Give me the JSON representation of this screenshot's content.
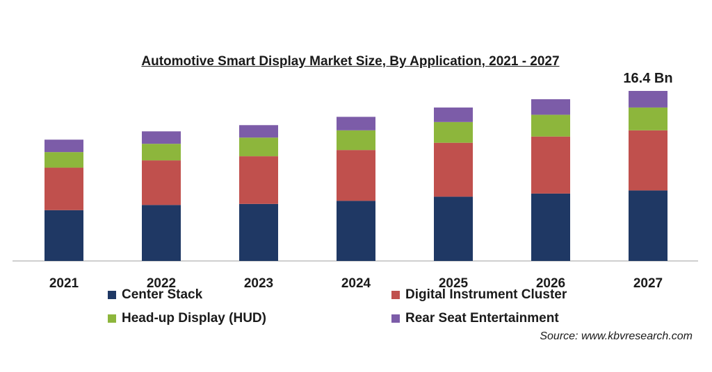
{
  "chart_data": {
    "type": "bar",
    "stacked": true,
    "title": "Automotive Smart Display Market Size, By Application, 2021 - 2027",
    "categories": [
      "2021",
      "2022",
      "2023",
      "2024",
      "2025",
      "2026",
      "2027"
    ],
    "series": [
      {
        "name": "Center Stack",
        "color": "#1f3864",
        "values": [
          4.9,
          5.4,
          5.5,
          5.8,
          6.2,
          6.5,
          6.8
        ]
      },
      {
        "name": "Digital Instrument Cluster",
        "color": "#c0504d",
        "values": [
          4.1,
          4.3,
          4.6,
          4.9,
          5.2,
          5.5,
          5.8
        ]
      },
      {
        "name": "Head-up Display (HUD)",
        "color": "#8db63c",
        "values": [
          1.5,
          1.6,
          1.8,
          1.9,
          2.0,
          2.1,
          2.2
        ]
      },
      {
        "name": "Rear Seat Entertainment",
        "color": "#7c5ca8",
        "values": [
          1.2,
          1.2,
          1.2,
          1.3,
          1.4,
          1.5,
          1.6
        ]
      }
    ],
    "annotations": [
      {
        "category": "2027",
        "text": "16.4 Bn"
      }
    ],
    "ylim": [
      0,
      16.4
    ],
    "grid": false,
    "legend": "bottom"
  },
  "source": "Source: www.kbvresearch.com"
}
